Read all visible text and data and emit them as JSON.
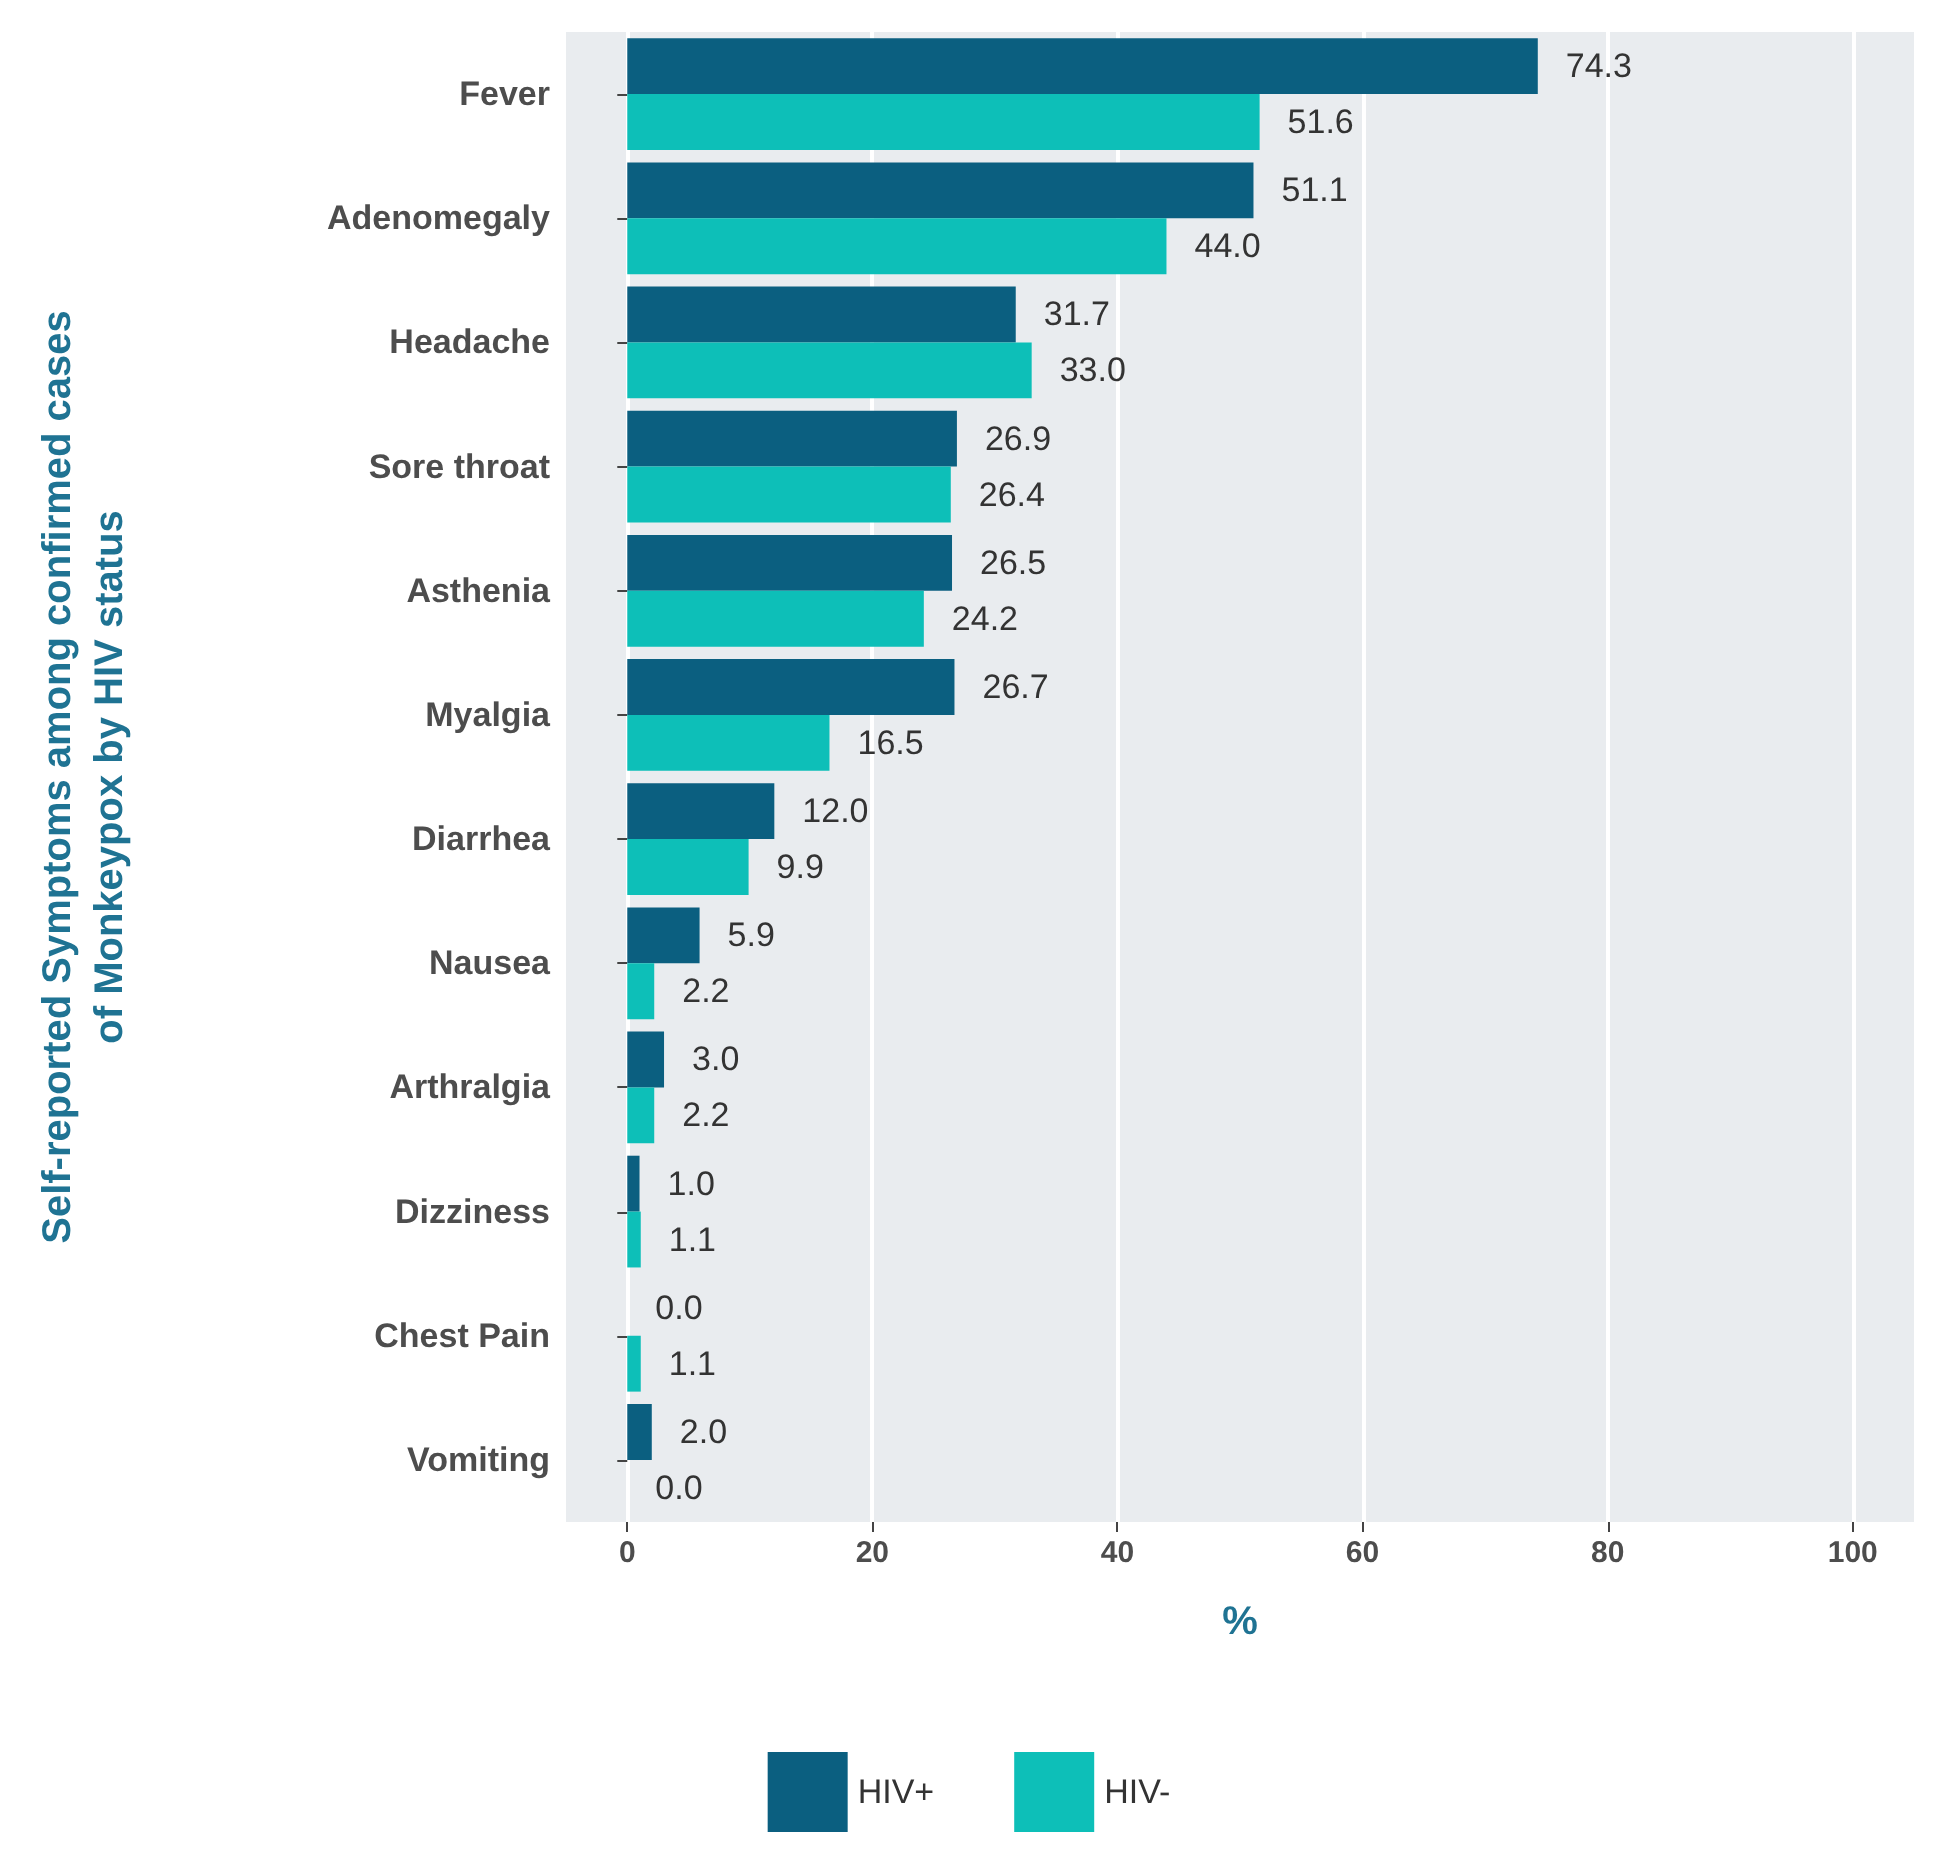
{
  "chart_data": {
    "type": "bar",
    "orientation": "horizontal",
    "ylabel": "Self-reported Symptoms among confirmed cases\nof Monkeypox by HIV status",
    "xlabel": "%",
    "categories": [
      "Fever",
      "Adenomegaly",
      "Headache",
      "Sore throat",
      "Asthenia",
      "Myalgia",
      "Diarrhea",
      "Nausea",
      "Arthralgia",
      "Dizziness",
      "Chest Pain",
      "Vomiting"
    ],
    "series": [
      {
        "name": "HIV+",
        "color": "#0b5f80",
        "values": [
          74.3,
          51.1,
          31.7,
          26.9,
          26.5,
          26.7,
          12.0,
          5.9,
          3.0,
          1.0,
          0.0,
          2.0
        ],
        "value_labels": [
          "74.3",
          "51.1",
          "31.7",
          "26.9",
          "26.5",
          "26.7",
          "12.0",
          "5.9",
          "3.0",
          "1.0",
          "0.0",
          "2.0"
        ]
      },
      {
        "name": "HIV-",
        "color": "#0dbfb8",
        "values": [
          51.6,
          44.0,
          33.0,
          26.4,
          24.2,
          16.5,
          9.9,
          2.2,
          2.2,
          1.1,
          1.1,
          0.0
        ],
        "value_labels": [
          "51.6",
          "44.0",
          "33.0",
          "26.4",
          "24.2",
          "16.5",
          "9.9",
          "2.2",
          "2.2",
          "1.1",
          "1.1",
          "0.0"
        ]
      }
    ],
    "xlim": [
      -5,
      105
    ],
    "xticks": [
      0,
      20,
      40,
      60,
      80,
      100
    ],
    "grid": "x",
    "legend": "bottom"
  }
}
